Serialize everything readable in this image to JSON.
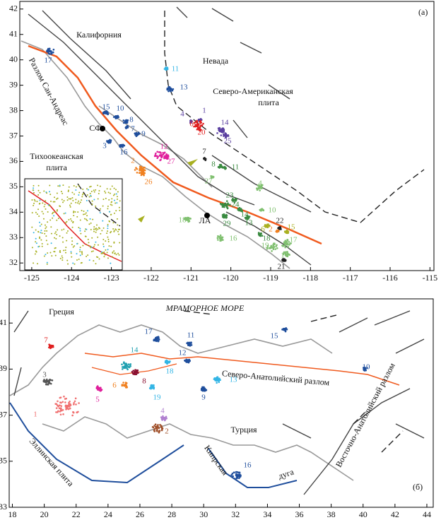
{
  "panel_a": {
    "label": "(а)",
    "xlim": [
      -125.3,
      -114.9
    ],
    "ylim": [
      31.7,
      42.3
    ],
    "xticks": [
      -125,
      -124,
      -123,
      -122,
      -121,
      -120,
      -119,
      -118,
      -117,
      -116,
      -115
    ],
    "yticks": [
      42,
      41,
      40,
      39,
      38,
      37,
      36,
      35,
      34,
      33,
      32
    ],
    "places": [
      "Калифорния",
      "Невада",
      "Северо-Американская",
      "плита",
      "Разлом Сан-Андреас",
      "СФ",
      "Тихоокеанская",
      "плита",
      "ЛА"
    ],
    "clusters": [
      "17",
      "11",
      "13",
      "15",
      "10",
      "8",
      "7",
      "9",
      "3",
      "16",
      "4",
      "1",
      "6",
      "20",
      "14",
      "25",
      "12",
      "27",
      "2",
      "26",
      "7",
      "8",
      "11",
      "27",
      "23",
      "4",
      "24",
      "14",
      "10",
      "18",
      "13",
      "29",
      "16",
      "6",
      "18",
      "22",
      "15",
      "2",
      "17",
      "19",
      "1",
      "21"
    ]
  },
  "panel_b": {
    "label": "(б)",
    "xlim": [
      17.8,
      44.4
    ],
    "ylim": [
      33,
      42.05
    ],
    "xticks": [
      18,
      20,
      22,
      24,
      26,
      28,
      30,
      32,
      34,
      36,
      38,
      40,
      42,
      44
    ],
    "yticks": [
      41,
      39,
      37,
      35,
      33
    ],
    "places": [
      "Греция",
      "МРАМОРНОЕ МОРЕ",
      "Северо-Анатолийский разлом",
      "Турция",
      "Восточно-Анатолийский разлом",
      "Эллинская плита",
      "Кипрская",
      "дуга"
    ],
    "clusters": [
      "7",
      "3",
      "1",
      "5",
      "6",
      "14",
      "8",
      "19",
      "17",
      "11",
      "12",
      "18",
      "13",
      "9",
      "4",
      "2",
      "15",
      "10",
      "16"
    ]
  }
}
